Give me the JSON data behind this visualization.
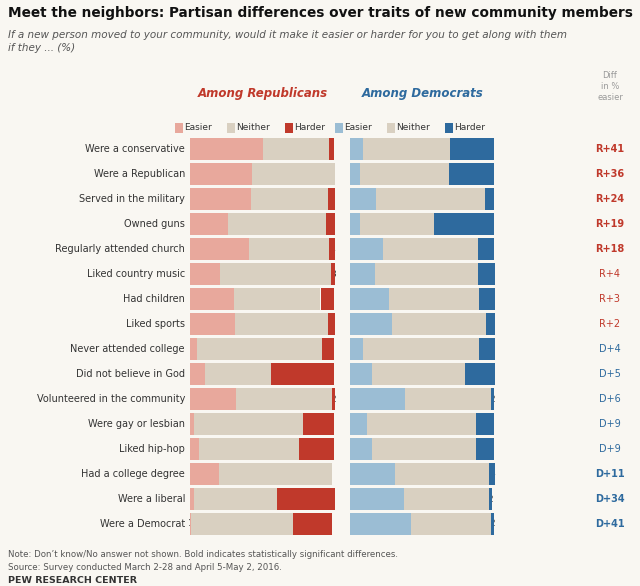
{
  "title": "Meet the neighbors: Partisan differences over traits of new community members",
  "subtitle": "If a new person moved to your community, would it make it easier or harder for you to get along with them\nif they ... (%)",
  "note": "Note: Don’t know/No answer not shown. Bold indicates statistically significant differences.\nSource: Survey conducted March 2-28 and April 5-May 2, 2016.",
  "source": "PEW RESEARCH CENTER",
  "categories": [
    "Were a conservative",
    "Were a Republican",
    "Served in the military",
    "Owned guns",
    "Regularly attended church",
    "Liked country music",
    "Had children",
    "Liked sports",
    "Never attended college",
    "Did not believe in God",
    "Volunteered in the community",
    "Were gay or lesbian",
    "Liked hip-hop",
    "Had a college degree",
    "Were a liberal",
    "Were a Democrat"
  ],
  "rep_easier": [
    50,
    43,
    42,
    26,
    41,
    21,
    30,
    31,
    5,
    10,
    32,
    3,
    6,
    20,
    3,
    1
  ],
  "rep_neither": [
    46,
    57,
    53,
    68,
    55,
    76,
    60,
    64,
    86,
    46,
    66,
    75,
    69,
    78,
    57,
    70
  ],
  "rep_harder": [
    3,
    0,
    5,
    6,
    4,
    3,
    9,
    5,
    8,
    43,
    2,
    21,
    24,
    0,
    40,
    27
  ],
  "dem_easier": [
    9,
    7,
    18,
    7,
    23,
    17,
    27,
    29,
    9,
    15,
    38,
    12,
    15,
    31,
    37,
    42
  ],
  "dem_neither": [
    60,
    61,
    75,
    51,
    65,
    71,
    62,
    65,
    80,
    64,
    59,
    75,
    72,
    65,
    59,
    55
  ],
  "dem_harder": [
    30,
    31,
    6,
    41,
    11,
    12,
    11,
    6,
    11,
    21,
    2,
    12,
    12,
    4,
    2,
    2
  ],
  "diff_labels": [
    "R+41",
    "R+36",
    "R+24",
    "R+19",
    "R+18",
    "R+4",
    "R+3",
    "R+2",
    "D+4",
    "D+5",
    "D+6",
    "D+9",
    "D+9",
    "D+11",
    "D+34",
    "D+41"
  ],
  "diff_bold": [
    true,
    true,
    true,
    true,
    true,
    false,
    false,
    false,
    false,
    false,
    false,
    false,
    false,
    true,
    true,
    true
  ],
  "rep_easier_color": "#e8a89c",
  "rep_neither_color": "#d9d0c1",
  "rep_harder_color": "#c0392b",
  "dem_easier_color": "#9bbdd4",
  "dem_neither_color": "#d9d0c1",
  "dem_harder_color": "#2e6a9e",
  "rep_header_color": "#c0392b",
  "dem_header_color": "#2e6a9e",
  "diff_r_color": "#c0392b",
  "diff_d_color": "#2e6a9e",
  "diff_header_color": "#999999",
  "background_color": "#f9f7f2"
}
